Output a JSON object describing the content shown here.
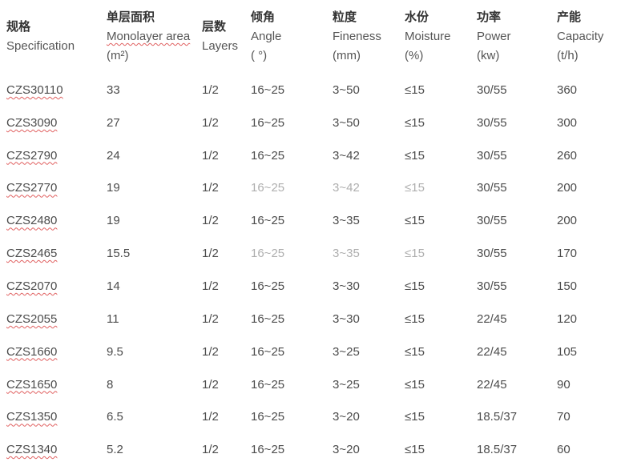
{
  "table": {
    "columns": [
      {
        "zh": "规格",
        "en": "Specification",
        "unit": "",
        "misspelled": false
      },
      {
        "zh": "单层面积",
        "en": "Monolayer area",
        "unit": "(m²)",
        "misspelled": true
      },
      {
        "zh": "层数",
        "en": "Layers",
        "unit": "",
        "misspelled": false
      },
      {
        "zh": "倾角",
        "en": "Angle",
        "unit": "( °)",
        "misspelled": false
      },
      {
        "zh": "粒度",
        "en": "Fineness",
        "unit": "(mm)",
        "misspelled": false
      },
      {
        "zh": "水份",
        "en": "Moisture",
        "unit": "(%)",
        "misspelled": false
      },
      {
        "zh": "功率",
        "en": "Power",
        "unit": "(kw)",
        "misspelled": false
      },
      {
        "zh": "产能",
        "en": "Capacity",
        "unit": "(t/h)",
        "misspelled": false
      }
    ],
    "rows": [
      {
        "cells": [
          "CZS30110",
          "33",
          "1/2",
          "16~25",
          "3~50",
          "≤15",
          "30/55",
          "360"
        ]
      },
      {
        "cells": [
          "CZS3090",
          "27",
          "1/2",
          "16~25",
          "3~50",
          "≤15",
          "30/55",
          "300"
        ]
      },
      {
        "cells": [
          "CZS2790",
          "24",
          "1/2",
          "16~25",
          "3~42",
          "≤15",
          "30/55",
          "260"
        ]
      },
      {
        "cells": [
          "CZS2770",
          "19",
          "1/2",
          "16~25",
          "3~42",
          "≤15",
          "30/55",
          "200"
        ]
      },
      {
        "cells": [
          "CZS2480",
          "19",
          "1/2",
          "16~25",
          "3~35",
          "≤15",
          "30/55",
          "200"
        ]
      },
      {
        "cells": [
          "CZS2465",
          "15.5",
          "1/2",
          "16~25",
          "3~35",
          "≤15",
          "30/55",
          "170"
        ]
      },
      {
        "cells": [
          "CZS2070",
          "14",
          "1/2",
          "16~25",
          "3~30",
          "≤15",
          "30/55",
          "150"
        ]
      },
      {
        "cells": [
          "CZS2055",
          "11",
          "1/2",
          "16~25",
          "3~30",
          "≤15",
          "22/45",
          "120"
        ]
      },
      {
        "cells": [
          "CZS1660",
          "9.5",
          "1/2",
          "16~25",
          "3~25",
          "≤15",
          "22/45",
          "105"
        ]
      },
      {
        "cells": [
          "CZS1650",
          "8",
          "1/2",
          "16~25",
          "3~25",
          "≤15",
          "22/45",
          "90"
        ]
      },
      {
        "cells": [
          "CZS1350",
          "6.5",
          "1/2",
          "16~25",
          "3~20",
          "≤15",
          "18.5/37",
          "70"
        ]
      },
      {
        "cells": [
          "CZS1340",
          "5.2",
          "1/2",
          "16~25",
          "3~20",
          "≤15",
          "18.5/37",
          "60"
        ]
      }
    ],
    "column_keys": [
      "spec",
      "monolayer-area",
      "layers",
      "angle",
      "fineness",
      "moisture",
      "power",
      "capacity"
    ]
  },
  "colors": {
    "background": "#ffffff",
    "header_zh_text": "#333333",
    "header_en_text": "#555555",
    "data_text": "#4c4c4c",
    "spellcheck_underline": "#e06060"
  }
}
